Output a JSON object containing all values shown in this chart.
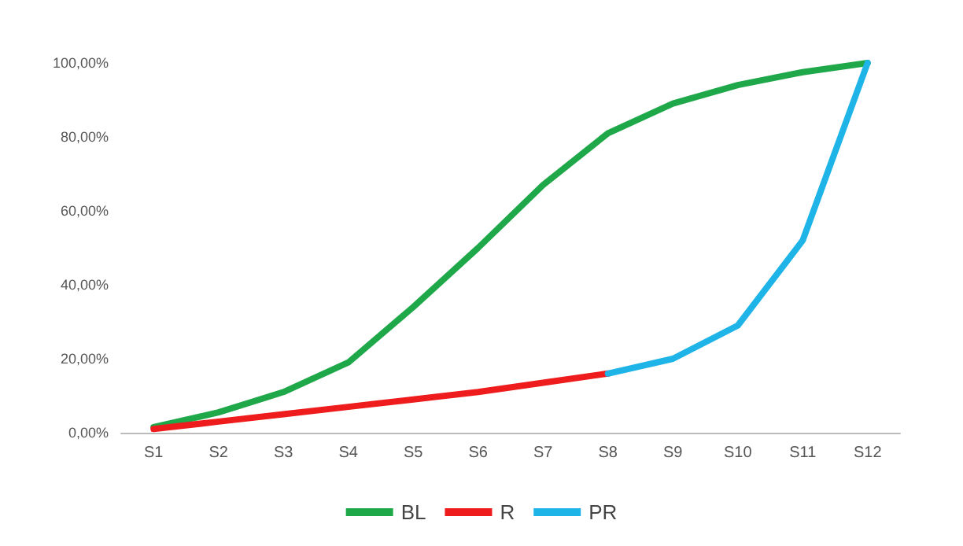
{
  "chart_data": {
    "type": "line",
    "categories": [
      "S1",
      "S2",
      "S3",
      "S4",
      "S5",
      "S6",
      "S7",
      "S8",
      "S9",
      "S10",
      "S11",
      "S12"
    ],
    "series": [
      {
        "name": "BL",
        "color": "#1fa84a",
        "values": [
          1.5,
          5.5,
          11,
          19,
          34,
          50,
          67,
          81,
          89,
          94,
          97.5,
          100
        ]
      },
      {
        "name": "R",
        "color": "#ee1c1c",
        "values": [
          1,
          3,
          5,
          7,
          9,
          11,
          13.5,
          16,
          null,
          null,
          null,
          null
        ]
      },
      {
        "name": "PR",
        "color": "#1eb4e8",
        "values": [
          null,
          null,
          null,
          null,
          null,
          null,
          null,
          16,
          20,
          29,
          52,
          100
        ]
      }
    ],
    "ylim": [
      0,
      100
    ],
    "yticks": [
      {
        "value": 0,
        "label": "0,00%"
      },
      {
        "value": 20,
        "label": "20,00%"
      },
      {
        "value": 40,
        "label": "40,00%"
      },
      {
        "value": 60,
        "label": "60,00%"
      },
      {
        "value": 80,
        "label": "80,00%"
      },
      {
        "value": 100,
        "label": "100,00%"
      }
    ],
    "grid": false,
    "legend": "bottom",
    "marker": "none",
    "line_style": "solid"
  }
}
